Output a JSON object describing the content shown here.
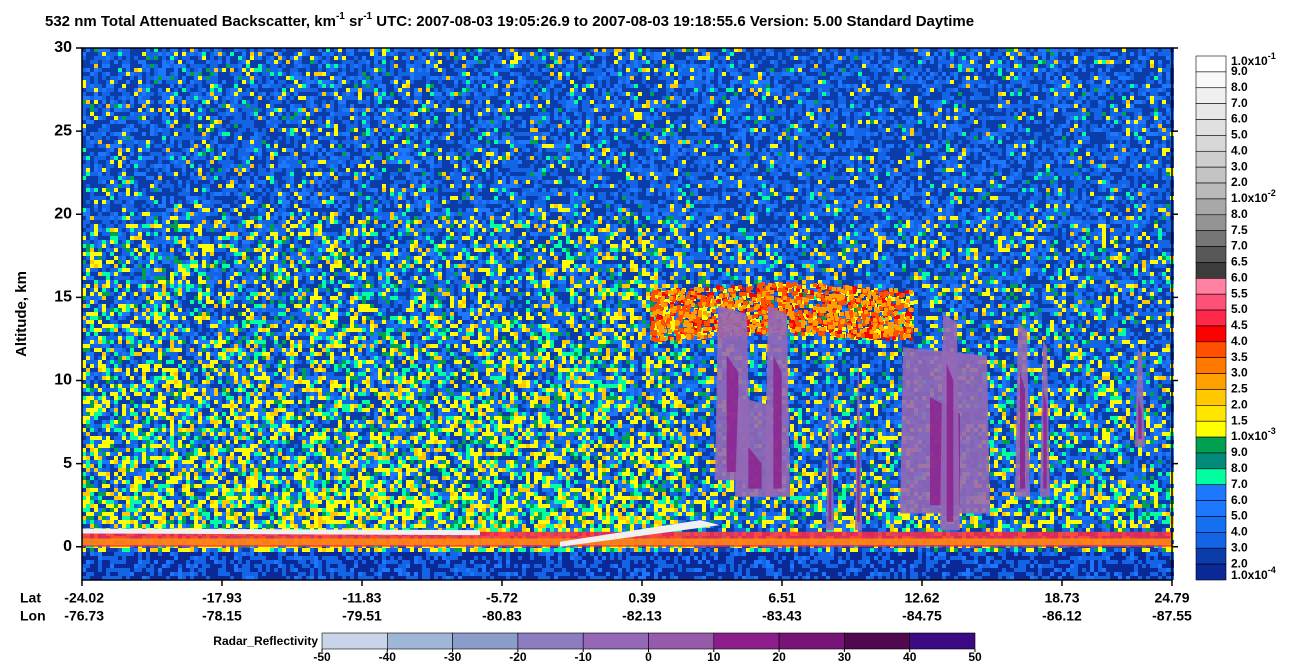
{
  "chart_data": {
    "type": "heatmap",
    "title_parts": [
      "532 nm Total Attenuated Backscatter, km",
      "-1",
      " sr",
      "-1",
      "    UTC:  2007-08-03 19:05:26.9  to  2007-08-03 19:18:55.6    Version: 5.00  Standard  Daytime"
    ],
    "ylabel": "Altitude, km",
    "ylim": [
      -2,
      30
    ],
    "yticks": [
      0,
      5,
      10,
      15,
      20,
      25,
      30
    ],
    "x_row_labels": [
      "Lat",
      "Lon"
    ],
    "lat": [
      "-24.02",
      "-17.93",
      "-11.83",
      "-5.72",
      "0.39",
      "6.51",
      "12.62",
      "18.73",
      "24.79"
    ],
    "lon": [
      "-76.73",
      "-78.15",
      "-79.51",
      "-80.83",
      "-82.13",
      "-83.43",
      "-84.75",
      "-86.12",
      "-87.55"
    ],
    "colorbar": {
      "labels": [
        {
          "text": "1.0x10",
          "sup": "-1"
        },
        "9.0",
        "8.0",
        "7.0",
        "6.0",
        "5.0",
        "4.0",
        "3.0",
        "2.0",
        {
          "text": "1.0x10",
          "sup": "-2"
        },
        "8.0",
        "7.5",
        "7.0",
        "6.5",
        "6.0",
        "5.5",
        "5.0",
        "4.5",
        "4.0",
        "3.5",
        "3.0",
        "2.5",
        "2.0",
        "1.5",
        {
          "text": "1.0x10",
          "sup": "-3"
        },
        "9.0",
        "8.0",
        "7.0",
        "6.0",
        "5.0",
        "4.0",
        "3.0",
        "2.0",
        {
          "text": "1.0x10",
          "sup": "-4"
        }
      ],
      "colors": [
        "#ffffff",
        "#f8f8f8",
        "#f0f0f0",
        "#e8e8e8",
        "#e0e0e0",
        "#d8d8d8",
        "#cecece",
        "#c4c4c4",
        "#bababa",
        "#a8a8a8",
        "#949494",
        "#767676",
        "#585858",
        "#3c3c3c",
        "#ff80a0",
        "#ff5078",
        "#ff2848",
        "#ff0000",
        "#ff5000",
        "#ff7800",
        "#ffa000",
        "#ffc800",
        "#ffe600",
        "#ffff00",
        "#00a050",
        "#008c78",
        "#00ffa0",
        "#1e78ff",
        "#1e78ff",
        "#1470f0",
        "#1464e6",
        "#0a3caa",
        "#0a2896"
      ]
    },
    "radar_colorbar": {
      "label": "Radar_Reflectivity",
      "ticks": [
        -50,
        -40,
        -30,
        -20,
        -10,
        0,
        10,
        20,
        30,
        40,
        50
      ],
      "colors": [
        "#c8d4e8",
        "#a0b6d6",
        "#8c9cca",
        "#8c7cc0",
        "#9468b6",
        "#965aaa",
        "#8c1e8c",
        "#781478",
        "#50084e",
        "#3c0a82"
      ]
    }
  }
}
